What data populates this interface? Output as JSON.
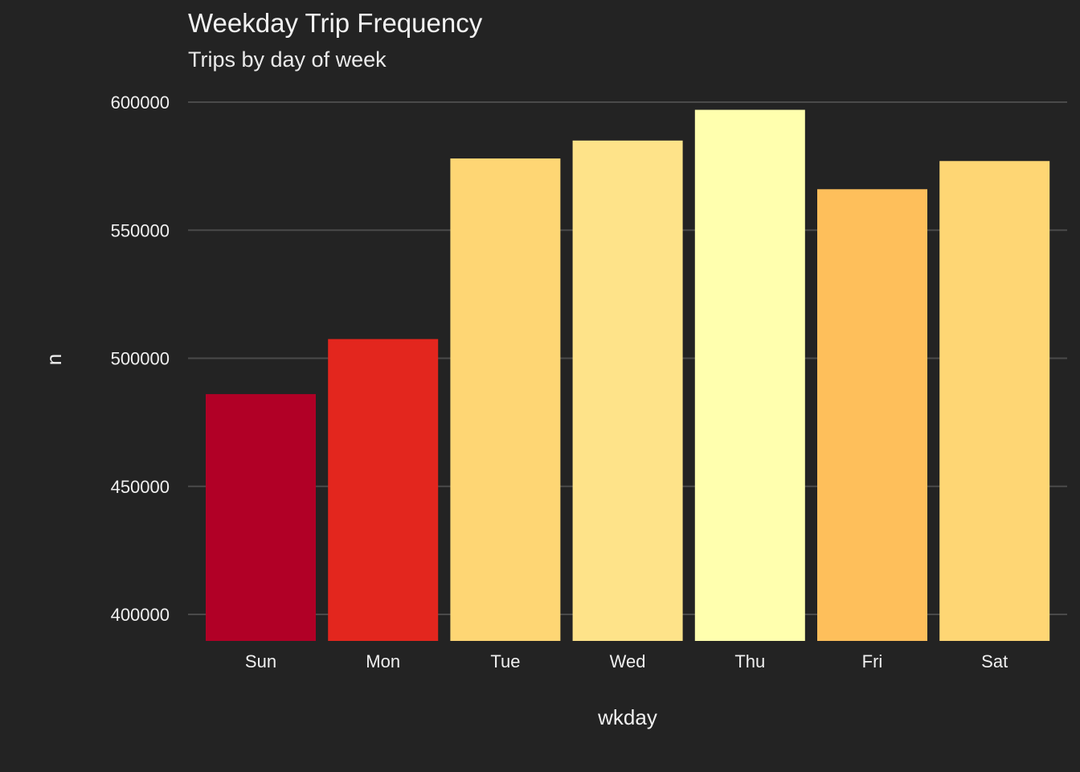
{
  "chart_data": {
    "type": "bar",
    "title": "Weekday Trip Frequency",
    "subtitle": "Trips by day of week",
    "xlabel": "wkday",
    "ylabel": "n",
    "categories": [
      "Sun",
      "Mon",
      "Tue",
      "Wed",
      "Thu",
      "Fri",
      "Sat"
    ],
    "values": [
      486000,
      507500,
      578000,
      585000,
      597000,
      566000,
      577000
    ],
    "colors": [
      "#B10026",
      "#E3261E",
      "#FED674",
      "#FEE389",
      "#FFFFAE",
      "#FEBF5B",
      "#FED674"
    ],
    "ylim": [
      390000,
      600000
    ],
    "yticks": [
      400000,
      450000,
      500000,
      550000,
      600000
    ],
    "ytick_labels": [
      "400000",
      "450000",
      "500000",
      "550000",
      "600000"
    ],
    "grid": "horizontal-major",
    "legend": "none",
    "background": "#232323",
    "grid_color": "#4a4a4a"
  }
}
